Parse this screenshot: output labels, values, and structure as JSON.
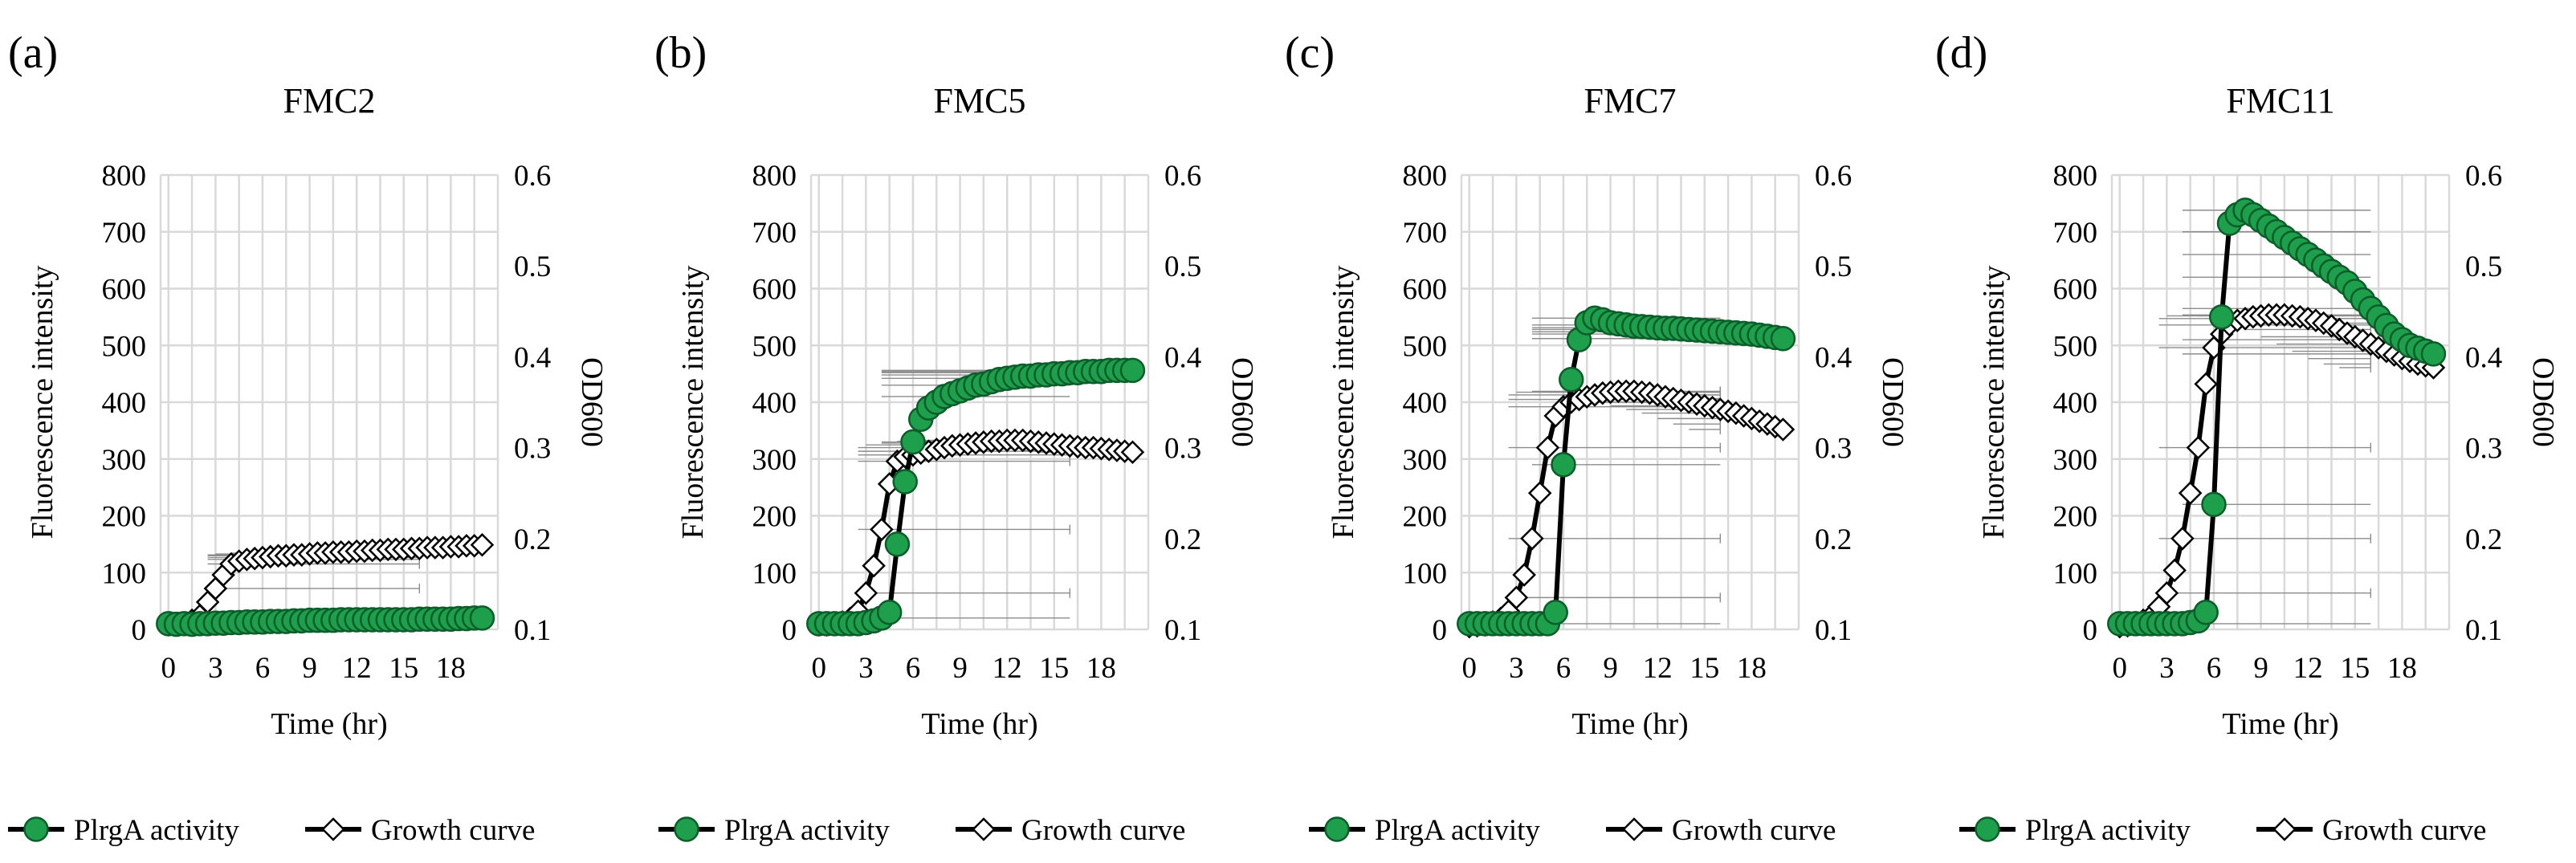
{
  "figure": {
    "legend": {
      "activity_label": "PlrgA activity",
      "growth_label": "Growth curve"
    },
    "colors": {
      "activity_fill": "#1d9f4c",
      "activity_stroke": "#0b5d2a",
      "line": "#000000",
      "grid": "#d9d9d9",
      "growth_fill": "#ffffff"
    }
  },
  "chart_data": [
    {
      "type": "line",
      "panel": "(a)",
      "title": "FMC2",
      "xlabel": "Time (hr)",
      "ylabel": "Fluorescence intensity",
      "y2label": "OD600",
      "x_ticks": [
        "0",
        "3",
        "6",
        "9",
        "12",
        "15",
        "18"
      ],
      "y_ticks": [
        "0",
        "100",
        "200",
        "300",
        "400",
        "500",
        "600",
        "700",
        "800"
      ],
      "y2_ticks": [
        "0.1",
        "0.2",
        "0.3",
        "0.4",
        "0.5",
        "0.6"
      ],
      "xlim": [
        -0.5,
        21
      ],
      "ylim": [
        0,
        800
      ],
      "y2lim": [
        0.1,
        0.6
      ],
      "grid": true,
      "x": [
        0,
        0.5,
        1,
        1.5,
        2,
        2.5,
        3,
        3.5,
        4,
        4.5,
        5,
        5.5,
        6,
        6.5,
        7,
        7.5,
        8,
        8.5,
        9,
        9.5,
        10,
        10.5,
        11,
        11.5,
        12,
        12.5,
        13,
        13.5,
        14,
        14.5,
        15,
        15.5,
        16,
        16.5,
        17,
        17.5,
        18,
        18.5,
        19,
        19.5,
        20
      ],
      "series": [
        {
          "name": "PlrgA activity",
          "axis": "left",
          "values": [
            10,
            9,
            10,
            9,
            10,
            10,
            11,
            11,
            12,
            12,
            13,
            13,
            13,
            14,
            14,
            14,
            15,
            15,
            16,
            16,
            16,
            16,
            17,
            17,
            17,
            17,
            17,
            17,
            17,
            17,
            17,
            17,
            18,
            18,
            18,
            18,
            18,
            19,
            19,
            20,
            20
          ]
        },
        {
          "name": "Growth curve",
          "axis": "right",
          "values": [
            0.105,
            0.106,
            0.107,
            0.11,
            0.115,
            0.13,
            0.145,
            0.16,
            0.172,
            0.175,
            0.177,
            0.178,
            0.179,
            0.18,
            0.181,
            0.181,
            0.182,
            0.182,
            0.183,
            0.184,
            0.184,
            0.185,
            0.185,
            0.185,
            0.186,
            0.186,
            0.187,
            0.187,
            0.188,
            0.188,
            0.188,
            0.189,
            0.189,
            0.19,
            0.19,
            0.19,
            0.191,
            0.191,
            0.192,
            0.192,
            0.193
          ]
        }
      ]
    },
    {
      "type": "line",
      "panel": "(b)",
      "title": "FMC5",
      "xlabel": "Time (hr)",
      "ylabel": "Fluorescence intensity",
      "y2label": "OD600",
      "x_ticks": [
        "0",
        "3",
        "6",
        "9",
        "12",
        "15",
        "18"
      ],
      "y_ticks": [
        "0",
        "100",
        "200",
        "300",
        "400",
        "500",
        "600",
        "700",
        "800"
      ],
      "y2_ticks": [
        "0.1",
        "0.2",
        "0.3",
        "0.4",
        "0.5",
        "0.6"
      ],
      "xlim": [
        -0.5,
        21
      ],
      "ylim": [
        0,
        800
      ],
      "y2lim": [
        0.1,
        0.6
      ],
      "grid": true,
      "x": [
        0,
        0.5,
        1,
        1.5,
        2,
        2.5,
        3,
        3.5,
        4,
        4.5,
        5,
        5.5,
        6,
        6.5,
        7,
        7.5,
        8,
        8.5,
        9,
        9.5,
        10,
        10.5,
        11,
        11.5,
        12,
        12.5,
        13,
        13.5,
        14,
        14.5,
        15,
        15.5,
        16,
        16.5,
        17,
        17.5,
        18,
        18.5,
        19,
        19.5,
        20
      ],
      "series": [
        {
          "name": "PlrgA activity",
          "axis": "left",
          "values": [
            10,
            10,
            10,
            10,
            10,
            10,
            12,
            15,
            20,
            30,
            150,
            260,
            330,
            370,
            390,
            400,
            410,
            415,
            420,
            425,
            430,
            432,
            436,
            440,
            442,
            444,
            446,
            446,
            448,
            448,
            450,
            450,
            452,
            452,
            454,
            454,
            454,
            456,
            456,
            456,
            456
          ]
        },
        {
          "name": "Growth curve",
          "axis": "right",
          "values": [
            0.105,
            0.105,
            0.106,
            0.108,
            0.112,
            0.12,
            0.14,
            0.17,
            0.21,
            0.26,
            0.285,
            0.29,
            0.292,
            0.294,
            0.296,
            0.298,
            0.3,
            0.302,
            0.303,
            0.304,
            0.305,
            0.306,
            0.307,
            0.307,
            0.308,
            0.308,
            0.308,
            0.307,
            0.306,
            0.305,
            0.304,
            0.303,
            0.302,
            0.301,
            0.3,
            0.3,
            0.299,
            0.298,
            0.297,
            0.296,
            0.295
          ]
        }
      ]
    },
    {
      "type": "line",
      "panel": "(c)",
      "title": "FMC7",
      "xlabel": "Time (hr)",
      "ylabel": "Fluorescence intensity",
      "y2label": "OD600",
      "x_ticks": [
        "0",
        "3",
        "6",
        "9",
        "12",
        "15",
        "18"
      ],
      "y_ticks": [
        "0",
        "100",
        "200",
        "300",
        "400",
        "500",
        "600",
        "700",
        "800"
      ],
      "y2_ticks": [
        "0.1",
        "0.2",
        "0.3",
        "0.4",
        "0.5",
        "0.6"
      ],
      "xlim": [
        -0.5,
        21
      ],
      "ylim": [
        0,
        800
      ],
      "y2lim": [
        0.1,
        0.6
      ],
      "grid": true,
      "x": [
        0,
        0.5,
        1,
        1.5,
        2,
        2.5,
        3,
        3.5,
        4,
        4.5,
        5,
        5.5,
        6,
        6.5,
        7,
        7.5,
        8,
        8.5,
        9,
        9.5,
        10,
        10.5,
        11,
        11.5,
        12,
        12.5,
        13,
        13.5,
        14,
        14.5,
        15,
        15.5,
        16,
        16.5,
        17,
        17.5,
        18,
        18.5,
        19,
        19.5,
        20
      ],
      "series": [
        {
          "name": "PlrgA activity",
          "axis": "left",
          "values": [
            10,
            10,
            10,
            10,
            10,
            10,
            10,
            10,
            10,
            10,
            10,
            30,
            290,
            440,
            510,
            540,
            548,
            545,
            540,
            538,
            536,
            534,
            533,
            532,
            531,
            530,
            530,
            529,
            528,
            527,
            526,
            525,
            524,
            523,
            522,
            521,
            520,
            518,
            516,
            514,
            512
          ]
        },
        {
          "name": "Growth curve",
          "axis": "right",
          "values": [
            0.103,
            0.104,
            0.105,
            0.108,
            0.112,
            0.12,
            0.135,
            0.16,
            0.2,
            0.25,
            0.3,
            0.335,
            0.345,
            0.35,
            0.353,
            0.356,
            0.358,
            0.36,
            0.361,
            0.362,
            0.362,
            0.362,
            0.361,
            0.36,
            0.358,
            0.356,
            0.354,
            0.352,
            0.35,
            0.348,
            0.346,
            0.344,
            0.342,
            0.34,
            0.338,
            0.335,
            0.332,
            0.329,
            0.326,
            0.323,
            0.32
          ]
        }
      ]
    },
    {
      "type": "line",
      "panel": "(d)",
      "title": "FMC11",
      "xlabel": "Time (hr)",
      "ylabel": "Fluorescence intensity",
      "y2label": "OD600",
      "x_ticks": [
        "0",
        "3",
        "6",
        "9",
        "12",
        "15",
        "18"
      ],
      "y_ticks": [
        "0",
        "100",
        "200",
        "300",
        "400",
        "500",
        "600",
        "700",
        "800"
      ],
      "y2_ticks": [
        "0.1",
        "0.2",
        "0.3",
        "0.4",
        "0.5",
        "0.6"
      ],
      "xlim": [
        -0.5,
        21
      ],
      "ylim": [
        0,
        800
      ],
      "y2lim": [
        0.1,
        0.6
      ],
      "grid": true,
      "x": [
        0,
        0.5,
        1,
        1.5,
        2,
        2.5,
        3,
        3.5,
        4,
        4.5,
        5,
        5.5,
        6,
        6.5,
        7,
        7.5,
        8,
        8.5,
        9,
        9.5,
        10,
        10.5,
        11,
        11.5,
        12,
        12.5,
        13,
        13.5,
        14,
        14.5,
        15,
        15.5,
        16,
        16.5,
        17,
        17.5,
        18,
        18.5,
        19,
        19.5,
        20
      ],
      "series": [
        {
          "name": "PlrgA activity",
          "axis": "left",
          "values": [
            10,
            10,
            10,
            10,
            10,
            10,
            10,
            10,
            10,
            12,
            15,
            30,
            220,
            550,
            715,
            730,
            738,
            730,
            720,
            710,
            700,
            690,
            680,
            670,
            660,
            650,
            640,
            630,
            620,
            610,
            595,
            580,
            565,
            550,
            535,
            520,
            510,
            500,
            495,
            490,
            485
          ]
        },
        {
          "name": "Growth curve",
          "axis": "right",
          "values": [
            0.103,
            0.104,
            0.106,
            0.11,
            0.115,
            0.125,
            0.14,
            0.165,
            0.2,
            0.25,
            0.3,
            0.37,
            0.41,
            0.425,
            0.435,
            0.44,
            0.442,
            0.444,
            0.445,
            0.446,
            0.446,
            0.446,
            0.445,
            0.444,
            0.442,
            0.44,
            0.437,
            0.434,
            0.43,
            0.426,
            0.422,
            0.418,
            0.414,
            0.41,
            0.406,
            0.402,
            0.398,
            0.395,
            0.392,
            0.39,
            0.388
          ]
        }
      ]
    }
  ]
}
